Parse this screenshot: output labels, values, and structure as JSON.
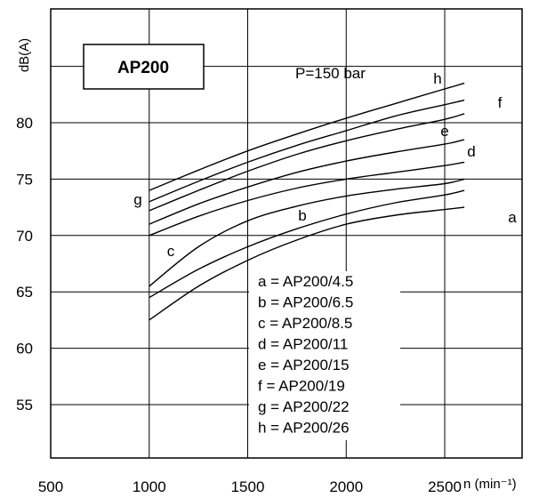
{
  "chart_data": {
    "type": "line",
    "title": "AP200",
    "annotation": "P=150 bar",
    "ylabel": "dB(A)",
    "xlabel": "n (min⁻¹)",
    "xlim": [
      500,
      2600
    ],
    "ylim": [
      50,
      86
    ],
    "grid": true,
    "x_ticks": [
      "500",
      "1000",
      "1500",
      "2000",
      "2500"
    ],
    "y_ticks": [
      "55",
      "60",
      "65",
      "70",
      "75",
      "80"
    ],
    "legend_title": "",
    "legend": [
      "a = AP200/4.5",
      "b = AP200/6.5",
      "c = AP200/8.5",
      "d = AP200/11",
      "e = AP200/15",
      "f = AP200/19",
      "g = AP200/22",
      "h = AP200/26"
    ],
    "series": [
      {
        "name": "a",
        "x": [
          1000,
          1250,
          1500,
          1750,
          2000,
          2250,
          2500,
          2600
        ],
        "y": [
          62.5,
          65.5,
          67.8,
          69.6,
          71.0,
          71.8,
          72.3,
          72.5
        ]
      },
      {
        "name": "b",
        "x": [
          1000,
          1250,
          1500,
          1750,
          2000,
          2250,
          2500,
          2600
        ],
        "y": [
          64.5,
          67.0,
          69.0,
          70.6,
          71.9,
          72.9,
          73.6,
          74.0
        ]
      },
      {
        "name": "c",
        "x": [
          1000,
          1250,
          1500,
          1750,
          2000,
          2250,
          2500,
          2600
        ],
        "y": [
          65.5,
          69.0,
          71.3,
          72.6,
          73.5,
          74.1,
          74.6,
          75.0
        ]
      },
      {
        "name": "d",
        "x": [
          1000,
          1250,
          1500,
          1750,
          2000,
          2250,
          2500,
          2600
        ],
        "y": [
          70.0,
          71.7,
          73.1,
          74.2,
          75.0,
          75.6,
          76.2,
          76.5
        ]
      },
      {
        "name": "e",
        "x": [
          1000,
          1250,
          1500,
          1750,
          2000,
          2250,
          2500,
          2600
        ],
        "y": [
          71.0,
          72.8,
          74.3,
          75.6,
          76.6,
          77.4,
          78.1,
          78.5
        ]
      },
      {
        "name": "f",
        "x": [
          1000,
          1250,
          1500,
          1750,
          2000,
          2250,
          2500,
          2600
        ],
        "y": [
          72.2,
          74.0,
          75.7,
          77.2,
          78.4,
          79.4,
          80.3,
          80.8
        ]
      },
      {
        "name": "g",
        "x": [
          1000,
          1250,
          1500,
          1750,
          2000,
          2250,
          2500,
          2600
        ],
        "y": [
          73.0,
          74.8,
          76.5,
          78.0,
          79.3,
          80.6,
          81.6,
          82.0
        ]
      },
      {
        "name": "h",
        "x": [
          1000,
          1250,
          1500,
          1750,
          2000,
          2250,
          2500,
          2600
        ],
        "y": [
          74.0,
          75.8,
          77.5,
          79.0,
          80.4,
          81.7,
          83.0,
          83.5
        ]
      }
    ]
  }
}
